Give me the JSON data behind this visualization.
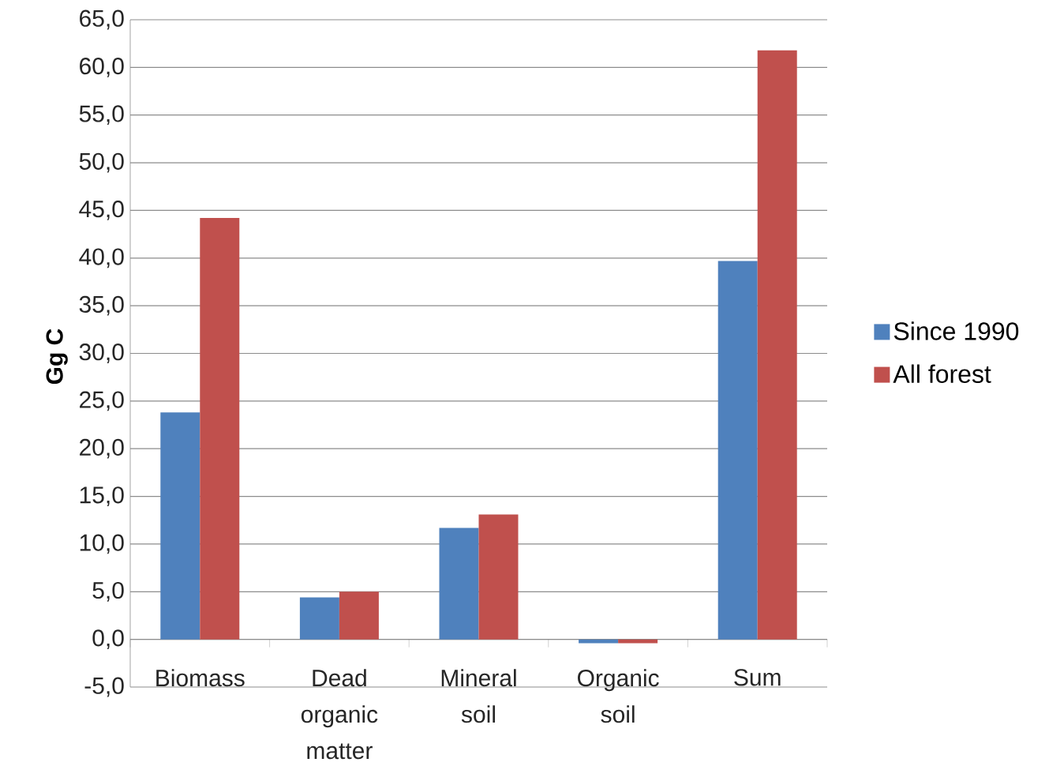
{
  "chart_data": {
    "type": "bar",
    "ylabel": "Gg C",
    "categories": [
      "Biomass",
      "Dead organic matter",
      "Mineral soil",
      "Organic soil",
      "Sum"
    ],
    "series": [
      {
        "name": "Since 1990",
        "color": "#4f81bd",
        "values": [
          23.8,
          4.4,
          11.7,
          -0.4,
          39.7
        ]
      },
      {
        "name": "All forest",
        "color": "#c0504d",
        "values": [
          44.2,
          5.0,
          13.1,
          -0.4,
          61.8
        ]
      }
    ],
    "ylim": [
      -5,
      65
    ],
    "yticks": [
      {
        "value": -5,
        "label": "-5,0"
      },
      {
        "value": 0,
        "label": "0,0"
      },
      {
        "value": 5,
        "label": "5,0"
      },
      {
        "value": 10,
        "label": "10,0"
      },
      {
        "value": 15,
        "label": "15,0"
      },
      {
        "value": 20,
        "label": "20,0"
      },
      {
        "value": 25,
        "label": "25,0"
      },
      {
        "value": 30,
        "label": "30,0"
      },
      {
        "value": 35,
        "label": "35,0"
      },
      {
        "value": 40,
        "label": "40,0"
      },
      {
        "value": 45,
        "label": "45,0"
      },
      {
        "value": 50,
        "label": "50,0"
      },
      {
        "value": 55,
        "label": "55,0"
      },
      {
        "value": 60,
        "label": "60,0"
      },
      {
        "value": 65,
        "label": "65,0"
      }
    ],
    "grid": "y",
    "legend": "right"
  }
}
